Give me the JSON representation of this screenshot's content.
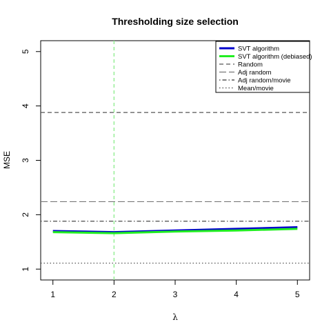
{
  "chart_data": {
    "type": "line",
    "title": "Thresholding size selection",
    "xlabel": "λ",
    "ylabel": "MSE",
    "xlim": [
      0.8,
      5.2
    ],
    "ylim": [
      0.8,
      5.2
    ],
    "x_ticks": [
      "1",
      "2",
      "3",
      "4",
      "5"
    ],
    "y_ticks": [
      "1",
      "2",
      "3",
      "4",
      "5"
    ],
    "legend_position": "top-right",
    "selected_lambda": 2,
    "series": [
      {
        "name": "SVT algorithm",
        "style": "solid-thick",
        "color": "#0000cc",
        "x": [
          1,
          2,
          3,
          4,
          5
        ],
        "y": [
          1.7,
          1.68,
          1.71,
          1.74,
          1.77
        ]
      },
      {
        "name": "SVT algorithm (debiased)",
        "style": "solid-thick",
        "color": "#22ee22",
        "x": [
          1,
          2,
          3,
          4,
          5
        ],
        "y": [
          1.68,
          1.66,
          1.69,
          1.71,
          1.74
        ]
      }
    ],
    "reference_lines": [
      {
        "name": "Random",
        "style": "dashed",
        "color": "#555555",
        "y": 3.88
      },
      {
        "name": "Adj random",
        "style": "longdash",
        "color": "#777777",
        "y": 2.24
      },
      {
        "name": "Adj random/movie",
        "style": "dotdash",
        "color": "#333333",
        "y": 1.88
      },
      {
        "name": "Mean/movie",
        "style": "dotted",
        "color": "#444444",
        "y": 1.11
      }
    ],
    "vertical_line_color": "#90ee90"
  }
}
